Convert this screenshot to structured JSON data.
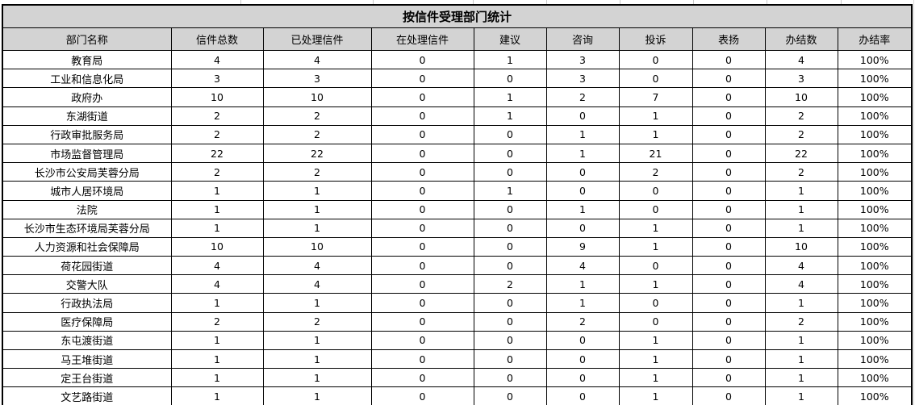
{
  "title": "按信件受理部门统计",
  "table": {
    "headers": [
      "部门名称",
      "信件总数",
      "已处理信件",
      "在处理信件",
      "建议",
      "咨询",
      "投诉",
      "表扬",
      "办结数",
      "办结率"
    ],
    "rows": [
      [
        "教育局",
        "4",
        "4",
        "0",
        "1",
        "3",
        "0",
        "0",
        "4",
        "100%"
      ],
      [
        "工业和信息化局",
        "3",
        "3",
        "0",
        "0",
        "3",
        "0",
        "0",
        "3",
        "100%"
      ],
      [
        "政府办",
        "10",
        "10",
        "0",
        "1",
        "2",
        "7",
        "0",
        "10",
        "100%"
      ],
      [
        "东湖街道",
        "2",
        "2",
        "0",
        "1",
        "0",
        "1",
        "0",
        "2",
        "100%"
      ],
      [
        "行政审批服务局",
        "2",
        "2",
        "0",
        "0",
        "1",
        "1",
        "0",
        "2",
        "100%"
      ],
      [
        "市场监督管理局",
        "22",
        "22",
        "0",
        "0",
        "1",
        "21",
        "0",
        "22",
        "100%"
      ],
      [
        "长沙市公安局芙蓉分局",
        "2",
        "2",
        "0",
        "0",
        "0",
        "2",
        "0",
        "2",
        "100%"
      ],
      [
        "城市人居环境局",
        "1",
        "1",
        "0",
        "1",
        "0",
        "0",
        "0",
        "1",
        "100%"
      ],
      [
        "法院",
        "1",
        "1",
        "0",
        "0",
        "1",
        "0",
        "0",
        "1",
        "100%"
      ],
      [
        "长沙市生态环境局芙蓉分局",
        "1",
        "1",
        "0",
        "0",
        "0",
        "1",
        "0",
        "1",
        "100%"
      ],
      [
        "人力资源和社会保障局",
        "10",
        "10",
        "0",
        "0",
        "9",
        "1",
        "0",
        "10",
        "100%"
      ],
      [
        "荷花园街道",
        "4",
        "4",
        "0",
        "0",
        "4",
        "0",
        "0",
        "4",
        "100%"
      ],
      [
        "交警大队",
        "4",
        "4",
        "0",
        "2",
        "1",
        "1",
        "0",
        "4",
        "100%"
      ],
      [
        "行政执法局",
        "1",
        "1",
        "0",
        "0",
        "1",
        "0",
        "0",
        "1",
        "100%"
      ],
      [
        "医疗保障局",
        "2",
        "2",
        "0",
        "0",
        "2",
        "0",
        "0",
        "2",
        "100%"
      ],
      [
        "东屯渡街道",
        "1",
        "1",
        "0",
        "0",
        "0",
        "1",
        "0",
        "1",
        "100%"
      ],
      [
        "马王堆街道",
        "1",
        "1",
        "0",
        "0",
        "0",
        "1",
        "0",
        "1",
        "100%"
      ],
      [
        "定王台街道",
        "1",
        "1",
        "0",
        "0",
        "0",
        "1",
        "0",
        "1",
        "100%"
      ],
      [
        "文艺路街道",
        "1",
        "1",
        "0",
        "0",
        "0",
        "1",
        "0",
        "1",
        "100%"
      ]
    ]
  },
  "colors": {
    "header_bg": "#d3d3d3",
    "row_bg": "#ffffff",
    "border": "#000000",
    "gridline": "#c9c9c9"
  }
}
